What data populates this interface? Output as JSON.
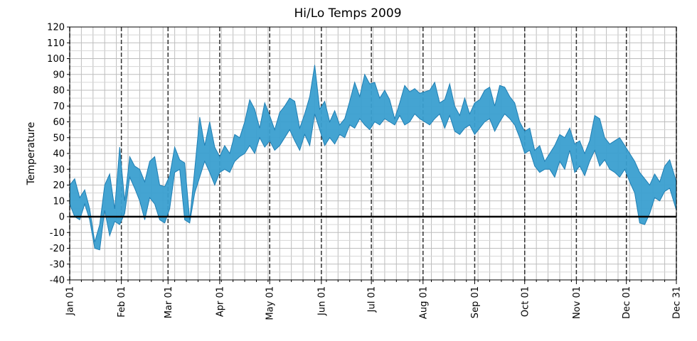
{
  "chart_data": {
    "type": "area",
    "title": "Hi/Lo Temps 2009",
    "xlabel": "",
    "ylabel": "Temperature",
    "ylim": [
      -40,
      120
    ],
    "yticks": [
      -40,
      -30,
      -20,
      -10,
      0,
      10,
      20,
      30,
      40,
      50,
      60,
      70,
      80,
      90,
      100,
      110,
      120
    ],
    "x_range": [
      "2009-01-01",
      "2009-12-31"
    ],
    "month_ticks": [
      {
        "date": "2009-01-01",
        "label": "Jan 01"
      },
      {
        "date": "2009-02-01",
        "label": "Feb 01"
      },
      {
        "date": "2009-03-01",
        "label": "Mar 01"
      },
      {
        "date": "2009-04-01",
        "label": "Apr 01"
      },
      {
        "date": "2009-05-01",
        "label": "May 01"
      },
      {
        "date": "2009-06-01",
        "label": "Jun 01"
      },
      {
        "date": "2009-07-01",
        "label": "Jul 01"
      },
      {
        "date": "2009-08-01",
        "label": "Aug 01"
      },
      {
        "date": "2009-09-01",
        "label": "Sep 01"
      },
      {
        "date": "2009-10-01",
        "label": "Oct 01"
      },
      {
        "date": "2009-11-01",
        "label": "Nov 01"
      },
      {
        "date": "2009-12-01",
        "label": "Dec 01"
      },
      {
        "date": "2009-12-31",
        "label": "Dec 31"
      }
    ],
    "minor_grid": "weekly",
    "grid": true,
    "zero_line": true,
    "fill_color": "#3a9fd0",
    "edge_color": "#1f7fb4",
    "series": [
      {
        "x": [
          "2009-01-01",
          "2009-01-04",
          "2009-01-07",
          "2009-01-10",
          "2009-01-13",
          "2009-01-16",
          "2009-01-19",
          "2009-01-22",
          "2009-01-25",
          "2009-01-28",
          "2009-01-31",
          "2009-02-03",
          "2009-02-06",
          "2009-02-09",
          "2009-02-12",
          "2009-02-15",
          "2009-02-18",
          "2009-02-21",
          "2009-02-24",
          "2009-02-27",
          "2009-03-02",
          "2009-03-05",
          "2009-03-08",
          "2009-03-11",
          "2009-03-14",
          "2009-03-17",
          "2009-03-20",
          "2009-03-23",
          "2009-03-26",
          "2009-03-29",
          "2009-04-01",
          "2009-04-04",
          "2009-04-07",
          "2009-04-10",
          "2009-04-13",
          "2009-04-16",
          "2009-04-19",
          "2009-04-22",
          "2009-04-25",
          "2009-04-28",
          "2009-05-01",
          "2009-05-04",
          "2009-05-07",
          "2009-05-10",
          "2009-05-13",
          "2009-05-16",
          "2009-05-19",
          "2009-05-22",
          "2009-05-25",
          "2009-05-28",
          "2009-05-31",
          "2009-06-03",
          "2009-06-06",
          "2009-06-09",
          "2009-06-12",
          "2009-06-15",
          "2009-06-18",
          "2009-06-21",
          "2009-06-24",
          "2009-06-27",
          "2009-06-30",
          "2009-07-03",
          "2009-07-06",
          "2009-07-09",
          "2009-07-12",
          "2009-07-15",
          "2009-07-18",
          "2009-07-21",
          "2009-07-24",
          "2009-07-27",
          "2009-07-30",
          "2009-08-02",
          "2009-08-05",
          "2009-08-08",
          "2009-08-11",
          "2009-08-14",
          "2009-08-17",
          "2009-08-20",
          "2009-08-23",
          "2009-08-26",
          "2009-08-29",
          "2009-09-01",
          "2009-09-04",
          "2009-09-07",
          "2009-09-10",
          "2009-09-13",
          "2009-09-16",
          "2009-09-19",
          "2009-09-22",
          "2009-09-25",
          "2009-09-28",
          "2009-10-01",
          "2009-10-04",
          "2009-10-07",
          "2009-10-10",
          "2009-10-13",
          "2009-10-16",
          "2009-10-19",
          "2009-10-22",
          "2009-10-25",
          "2009-10-28",
          "2009-10-31",
          "2009-11-03",
          "2009-11-06",
          "2009-11-09",
          "2009-11-12",
          "2009-11-15",
          "2009-11-18",
          "2009-11-21",
          "2009-11-24",
          "2009-11-27",
          "2009-11-30",
          "2009-12-03",
          "2009-12-06",
          "2009-12-09",
          "2009-12-12",
          "2009-12-15",
          "2009-12-18",
          "2009-12-21",
          "2009-12-24",
          "2009-12-27",
          "2009-12-31"
        ],
        "high": [
          20,
          24,
          12,
          17,
          5,
          -16,
          -5,
          20,
          27,
          5,
          44,
          10,
          38,
          32,
          30,
          22,
          35,
          38,
          20,
          19,
          26,
          44,
          36,
          34,
          -2,
          30,
          63,
          45,
          60,
          44,
          38,
          45,
          40,
          52,
          50,
          60,
          74,
          68,
          56,
          72,
          64,
          55,
          66,
          70,
          75,
          73,
          56,
          65,
          76,
          96,
          68,
          73,
          60,
          67,
          58,
          62,
          73,
          85,
          76,
          90,
          84,
          85,
          75,
          80,
          74,
          62,
          72,
          83,
          79,
          81,
          78,
          79,
          80,
          85,
          72,
          74,
          84,
          70,
          64,
          75,
          65,
          72,
          74,
          80,
          82,
          70,
          83,
          82,
          76,
          72,
          60,
          54,
          56,
          42,
          45,
          35,
          40,
          45,
          52,
          50,
          56,
          46,
          48,
          40,
          48,
          64,
          62,
          50,
          46,
          48,
          50,
          45,
          40,
          35,
          28,
          24,
          20,
          27,
          22,
          32,
          36,
          22
        ],
        "low": [
          8,
          0,
          -2,
          8,
          -2,
          -20,
          -21,
          4,
          -12,
          -3,
          -5,
          2,
          25,
          18,
          10,
          -2,
          12,
          8,
          -2,
          -4,
          5,
          28,
          30,
          -2,
          -4,
          15,
          25,
          35,
          28,
          20,
          28,
          30,
          28,
          35,
          38,
          40,
          45,
          40,
          50,
          44,
          48,
          42,
          45,
          50,
          55,
          48,
          42,
          52,
          45,
          65,
          55,
          45,
          50,
          46,
          52,
          50,
          58,
          56,
          62,
          58,
          55,
          60,
          58,
          62,
          60,
          58,
          64,
          58,
          60,
          65,
          62,
          60,
          58,
          62,
          65,
          56,
          64,
          54,
          52,
          56,
          58,
          52,
          56,
          60,
          62,
          54,
          60,
          65,
          62,
          58,
          50,
          40,
          42,
          32,
          28,
          30,
          30,
          25,
          35,
          30,
          42,
          28,
          32,
          26,
          35,
          42,
          32,
          36,
          30,
          28,
          25,
          30,
          22,
          15,
          -4,
          -5,
          2,
          12,
          10,
          16,
          18,
          4
        ]
      }
    ]
  }
}
